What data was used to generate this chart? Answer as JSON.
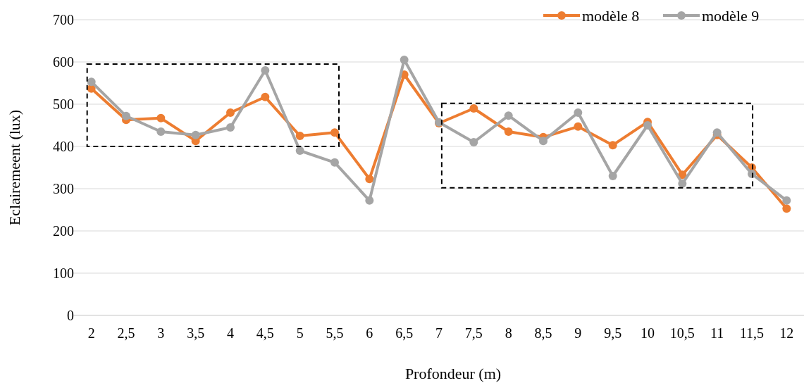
{
  "chart_data": {
    "type": "line",
    "xlabel": "Profondeur (m)",
    "ylabel": "Eclairemeent (lux)",
    "categories": [
      "2",
      "2,5",
      "3",
      "3,5",
      "4",
      "4,5",
      "5",
      "5,5",
      "6",
      "6,5",
      "7",
      "7,5",
      "8",
      "8,5",
      "9",
      "9,5",
      "10",
      "10,5",
      "11",
      "11,5",
      "12"
    ],
    "series": [
      {
        "name": "modèle 8",
        "color": "#ed7d31",
        "values": [
          537,
          463,
          467,
          413,
          480,
          517,
          425,
          433,
          323,
          570,
          455,
          490,
          435,
          422,
          447,
          403,
          458,
          333,
          427,
          350,
          253
        ]
      },
      {
        "name": "modèle 9",
        "color": "#a5a5a5",
        "values": [
          553,
          472,
          435,
          427,
          445,
          580,
          390,
          362,
          272,
          605,
          457,
          410,
          473,
          413,
          480,
          330,
          450,
          312,
          433,
          335,
          272
        ]
      }
    ],
    "ylim": [
      0,
      700
    ],
    "yticks": [
      0,
      100,
      200,
      300,
      400,
      500,
      600,
      700
    ],
    "grid": "y",
    "legend": "top right",
    "marker": "circle",
    "line_style": "solid"
  }
}
